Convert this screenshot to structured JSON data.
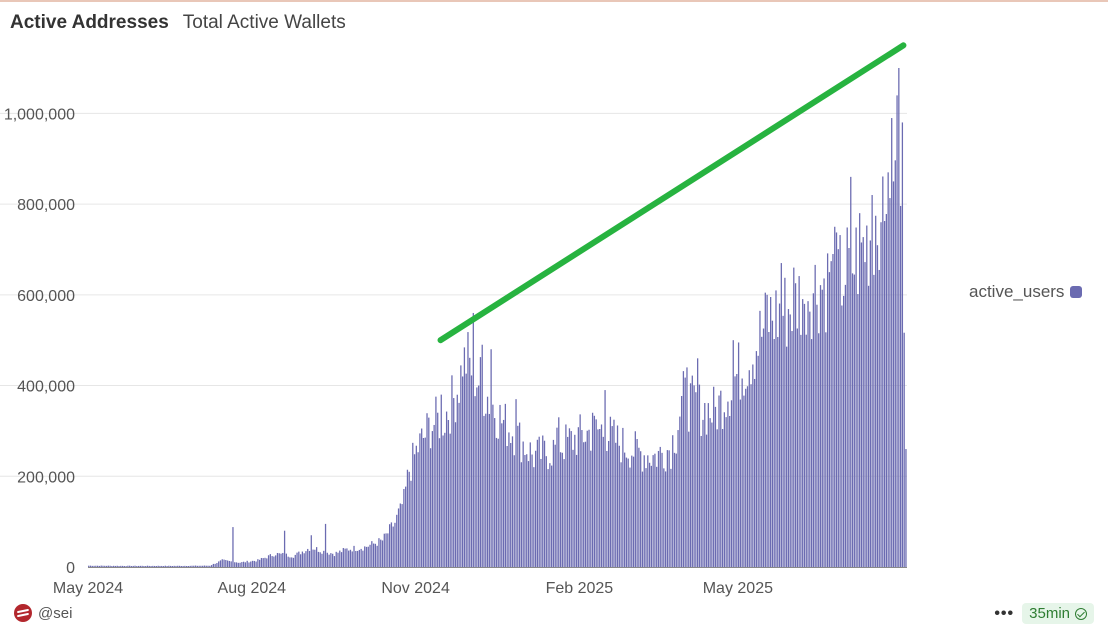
{
  "header": {
    "title": "Active Addresses",
    "subtitle": "Total Active Wallets"
  },
  "legend": {
    "label": "active_users",
    "color": "#6b6bb1"
  },
  "footer": {
    "handle": "@sei",
    "more": "•••",
    "freshness": "35min"
  },
  "colors": {
    "bar": "#6b6bb1",
    "trendline": "#27b340",
    "grid": "#e6e6e6"
  },
  "chart_data": {
    "type": "bar",
    "title": "Active Addresses",
    "subtitle": "Total Active Wallets",
    "ylabel": "",
    "xlabel": "",
    "ylim": [
      0,
      1100000
    ],
    "yticks": [
      0,
      200000,
      400000,
      600000,
      800000,
      1000000
    ],
    "ytick_labels": [
      "0",
      "200,000",
      "400,000",
      "600,000",
      "800,000",
      "1,000,000"
    ],
    "xticks": [
      {
        "label": "May 2024",
        "day": 0
      },
      {
        "label": "Aug 2024",
        "day": 92
      },
      {
        "label": "Nov 2024",
        "day": 184
      },
      {
        "label": "Feb 2025",
        "day": 276
      },
      {
        "label": "May 2025",
        "day": 365
      }
    ],
    "x_range_days": [
      0,
      460
    ],
    "grid": true,
    "legend_position": "right",
    "series": [
      {
        "name": "active_users",
        "anchors": [
          [
            0,
            3000
          ],
          [
            20,
            2500
          ],
          [
            50,
            2500
          ],
          [
            68,
            3000
          ],
          [
            75,
            15000
          ],
          [
            85,
            10000
          ],
          [
            95,
            15000
          ],
          [
            105,
            30000
          ],
          [
            115,
            25000
          ],
          [
            125,
            45000
          ],
          [
            132,
            35000
          ],
          [
            138,
            30000
          ],
          [
            145,
            40000
          ],
          [
            155,
            45000
          ],
          [
            165,
            60000
          ],
          [
            172,
            100000
          ],
          [
            177,
            150000
          ],
          [
            180,
            220000
          ],
          [
            185,
            270000
          ],
          [
            192,
            320000
          ],
          [
            200,
            340000
          ],
          [
            205,
            380000
          ],
          [
            212,
            470000
          ],
          [
            218,
            430000
          ],
          [
            225,
            380000
          ],
          [
            232,
            330000
          ],
          [
            240,
            300000
          ],
          [
            250,
            250000
          ],
          [
            258,
            260000
          ],
          [
            268,
            280000
          ],
          [
            278,
            300000
          ],
          [
            288,
            310000
          ],
          [
            298,
            280000
          ],
          [
            308,
            260000
          ],
          [
            318,
            250000
          ],
          [
            327,
            270000
          ],
          [
            334,
            380000
          ],
          [
            342,
            360000
          ],
          [
            352,
            350000
          ],
          [
            362,
            420000
          ],
          [
            372,
            480000
          ],
          [
            382,
            560000
          ],
          [
            392,
            580000
          ],
          [
            402,
            620000
          ],
          [
            412,
            640000
          ],
          [
            422,
            650000
          ],
          [
            432,
            700000
          ],
          [
            440,
            760000
          ],
          [
            447,
            860000
          ],
          [
            452,
            960000
          ],
          [
            456,
            940000
          ],
          [
            459,
            260000
          ]
        ],
        "spikes": [
          [
            81,
            88000
          ],
          [
            110,
            80000
          ],
          [
            125,
            70000
          ],
          [
            133,
            95000
          ],
          [
            175,
            140000
          ],
          [
            198,
            380000
          ],
          [
            210,
            420000
          ],
          [
            216,
            560000
          ],
          [
            221,
            490000
          ],
          [
            226,
            480000
          ],
          [
            240,
            370000
          ],
          [
            264,
            330000
          ],
          [
            283,
            340000
          ],
          [
            290,
            390000
          ],
          [
            330,
            250000
          ],
          [
            336,
            440000
          ],
          [
            342,
            460000
          ],
          [
            362,
            500000
          ],
          [
            381,
            600000
          ],
          [
            389,
            670000
          ],
          [
            396,
            660000
          ],
          [
            402,
            580000
          ],
          [
            416,
            650000
          ],
          [
            419,
            750000
          ],
          [
            428,
            860000
          ],
          [
            433,
            780000
          ],
          [
            440,
            820000
          ],
          [
            445,
            760000
          ],
          [
            449,
            870000
          ],
          [
            452,
            850000
          ],
          [
            455,
            1100000
          ],
          [
            457,
            980000
          ]
        ]
      }
    ],
    "annotations": [
      {
        "type": "trendline",
        "from": {
          "day": 198,
          "value": 500000
        },
        "to": {
          "day": 458,
          "value": 1150000
        },
        "color": "#27b340"
      }
    ]
  }
}
